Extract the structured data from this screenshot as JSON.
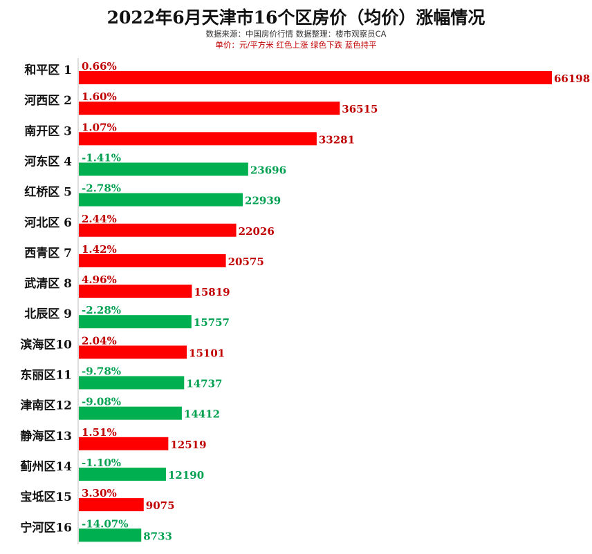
{
  "title": "2022年6月天津市16个区房价（均价）涨幅情况",
  "subtitle": "数据来源：中国房价行情   数据整理：楼市观察员CA",
  "note": "单价：元/平方米   红色上涨  绿色下跌  蓝色持平",
  "colors": {
    "up": "#ff0000",
    "down": "#00b050",
    "flat": "#0070c0",
    "up_text": "#c00000",
    "down_text": "#00a050"
  },
  "chart_data": {
    "type": "bar",
    "orientation": "horizontal",
    "title": "2022年6月天津市16个区房价（均价）涨幅情况",
    "unit": "元/平方米",
    "categories": [
      "和平区 1",
      "河西区 2",
      "南开区 3",
      "河东区 4",
      "红桥区 5",
      "河北区 6",
      "西青区 7",
      "武清区 8",
      "北辰区 9",
      "滨海区10",
      "东丽区11",
      "津南区12",
      "静海区13",
      "蓟州区14",
      "宝坻区15",
      "宁河区16"
    ],
    "values": [
      66198,
      36515,
      33281,
      23696,
      22939,
      22026,
      20575,
      15819,
      15757,
      15101,
      14737,
      14412,
      12519,
      12190,
      9075,
      8733
    ],
    "changes": [
      "0.66%",
      "1.60%",
      "1.07%",
      "-1.41%",
      "-2.78%",
      "2.44%",
      "1.42%",
      "4.96%",
      "-2.28%",
      "2.04%",
      "-9.78%",
      "-9.08%",
      "1.51%",
      "-1.10%",
      "3.30%",
      "-14.07%"
    ],
    "direction": [
      "up",
      "up",
      "up",
      "down",
      "down",
      "up",
      "up",
      "up",
      "down",
      "up",
      "down",
      "down",
      "up",
      "down",
      "up",
      "down"
    ],
    "legend": {
      "up": "红色上涨",
      "down": "绿色下跌",
      "flat": "蓝色持平"
    }
  }
}
